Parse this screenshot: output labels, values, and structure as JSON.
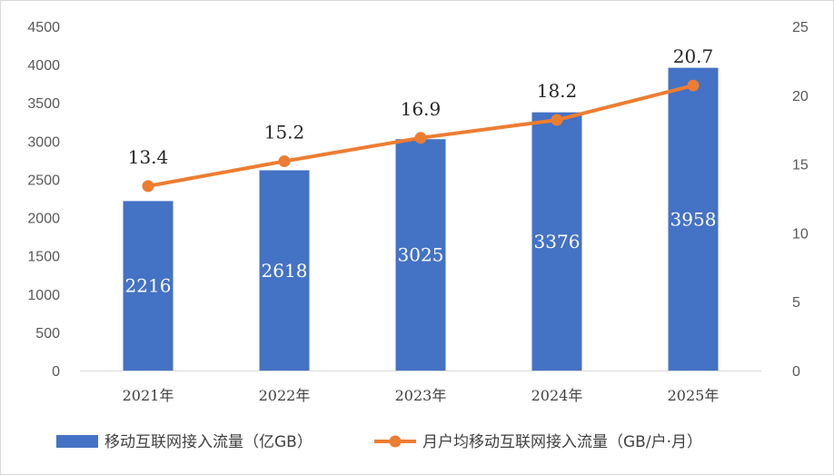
{
  "chart_data": {
    "type": "bar",
    "categories": [
      "2021年",
      "2022年",
      "2023年",
      "2024年",
      "2025年"
    ],
    "series": [
      {
        "name": "移动互联网接入流量（亿GB）",
        "type": "bar",
        "axis": "left",
        "color": "#4472C4",
        "values": [
          2216,
          2618,
          3025,
          3376,
          3958
        ],
        "labels": [
          "2216",
          "2618",
          "3025",
          "3376",
          "3958"
        ]
      },
      {
        "name": "月户均移动互联网接入流量（GB/户·月）",
        "type": "line",
        "axis": "right",
        "color": "#ED7D31",
        "values": [
          13.4,
          15.2,
          16.9,
          18.2,
          20.7
        ],
        "labels": [
          "13.4",
          "15.2",
          "16.9",
          "18.2",
          "20.7"
        ]
      }
    ],
    "y_left": {
      "min": 0,
      "max": 4500,
      "ticks": [
        "0",
        "500",
        "1000",
        "1500",
        "2000",
        "2500",
        "3000",
        "3500",
        "4000",
        "4500"
      ]
    },
    "y_right": {
      "min": 0,
      "max": 25,
      "ticks": [
        "0",
        "5",
        "10",
        "15",
        "20",
        "25"
      ]
    },
    "grid": false,
    "legend_position": "bottom",
    "title": "",
    "xlabel": "",
    "ylabel": ""
  }
}
